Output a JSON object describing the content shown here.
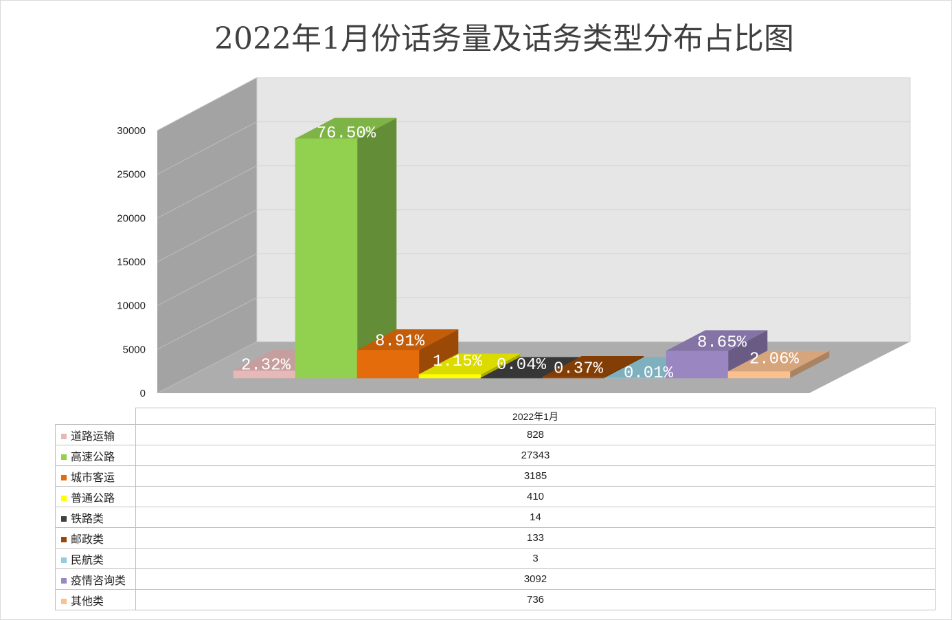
{
  "chart_data": {
    "type": "bar",
    "three_d": true,
    "title": "2022年1月份话务量及话务类型分布占比图",
    "categories": [
      "2022年1月"
    ],
    "series": [
      {
        "name": "道路运输",
        "values": [
          828
        ],
        "data_label": "2.32%",
        "color": "#E6B8B7"
      },
      {
        "name": "高速公路",
        "values": [
          27343
        ],
        "data_label": "76.50%",
        "color": "#92D050"
      },
      {
        "name": "城市客运",
        "values": [
          3185
        ],
        "data_label": "8.91%",
        "color": "#E46C0A"
      },
      {
        "name": "普通公路",
        "values": [
          410
        ],
        "data_label": "1.15%",
        "color": "#FFFF00"
      },
      {
        "name": "铁路类",
        "values": [
          14
        ],
        "data_label": "0.04%",
        "color": "#404040"
      },
      {
        "name": "邮政类",
        "values": [
          133
        ],
        "data_label": "0.37%",
        "color": "#984807"
      },
      {
        "name": "民航类",
        "values": [
          3
        ],
        "data_label": "0.01%",
        "color": "#93CDDD"
      },
      {
        "name": "疫情咨询类",
        "values": [
          3092
        ],
        "data_label": "8.65%",
        "color": "#9A86C0"
      },
      {
        "name": "其他类",
        "values": [
          736
        ],
        "data_label": "2.06%",
        "color": "#FAC090"
      }
    ],
    "ylim": [
      0,
      30000
    ],
    "yticks": [
      0,
      5000,
      10000,
      15000,
      20000,
      25000,
      30000
    ],
    "grid": true,
    "legend": "bottom",
    "data_table": true
  }
}
